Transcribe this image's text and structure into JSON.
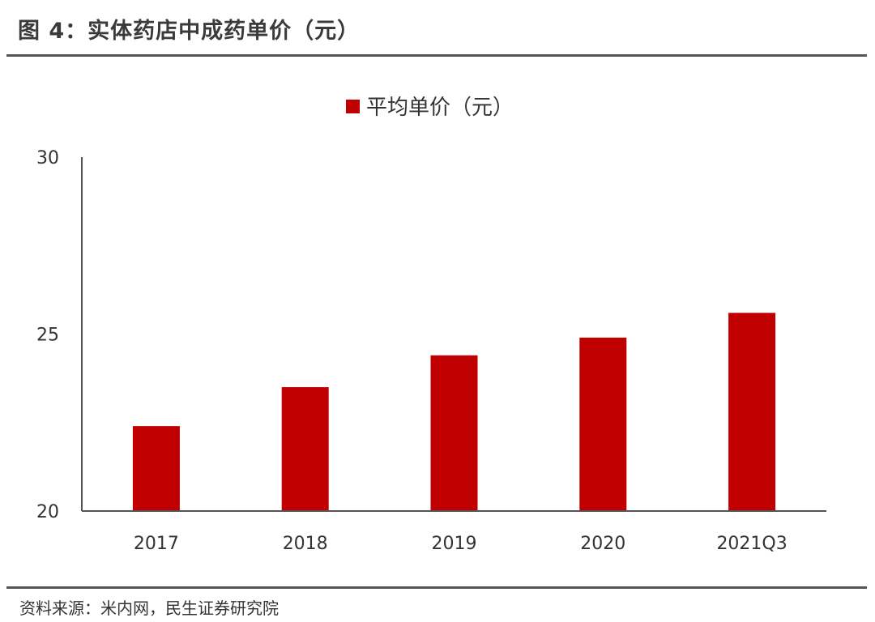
{
  "header": {
    "title": "图 4：实体药店中成药单价（元）"
  },
  "footer": {
    "source": "资料来源：米内网，民生证券研究院"
  },
  "chart_data": {
    "type": "bar",
    "categories": [
      "2017",
      "2018",
      "2019",
      "2020",
      "2021Q3"
    ],
    "series": [
      {
        "name": "平均单价（元）",
        "values": [
          22.4,
          23.5,
          24.4,
          24.9,
          25.6
        ],
        "color": "#C00000"
      }
    ],
    "ylim": [
      20,
      30
    ],
    "yticks": [
      20,
      25,
      30
    ],
    "xlabel": "",
    "ylabel": "",
    "legend_position": "top-center",
    "grid": false
  }
}
